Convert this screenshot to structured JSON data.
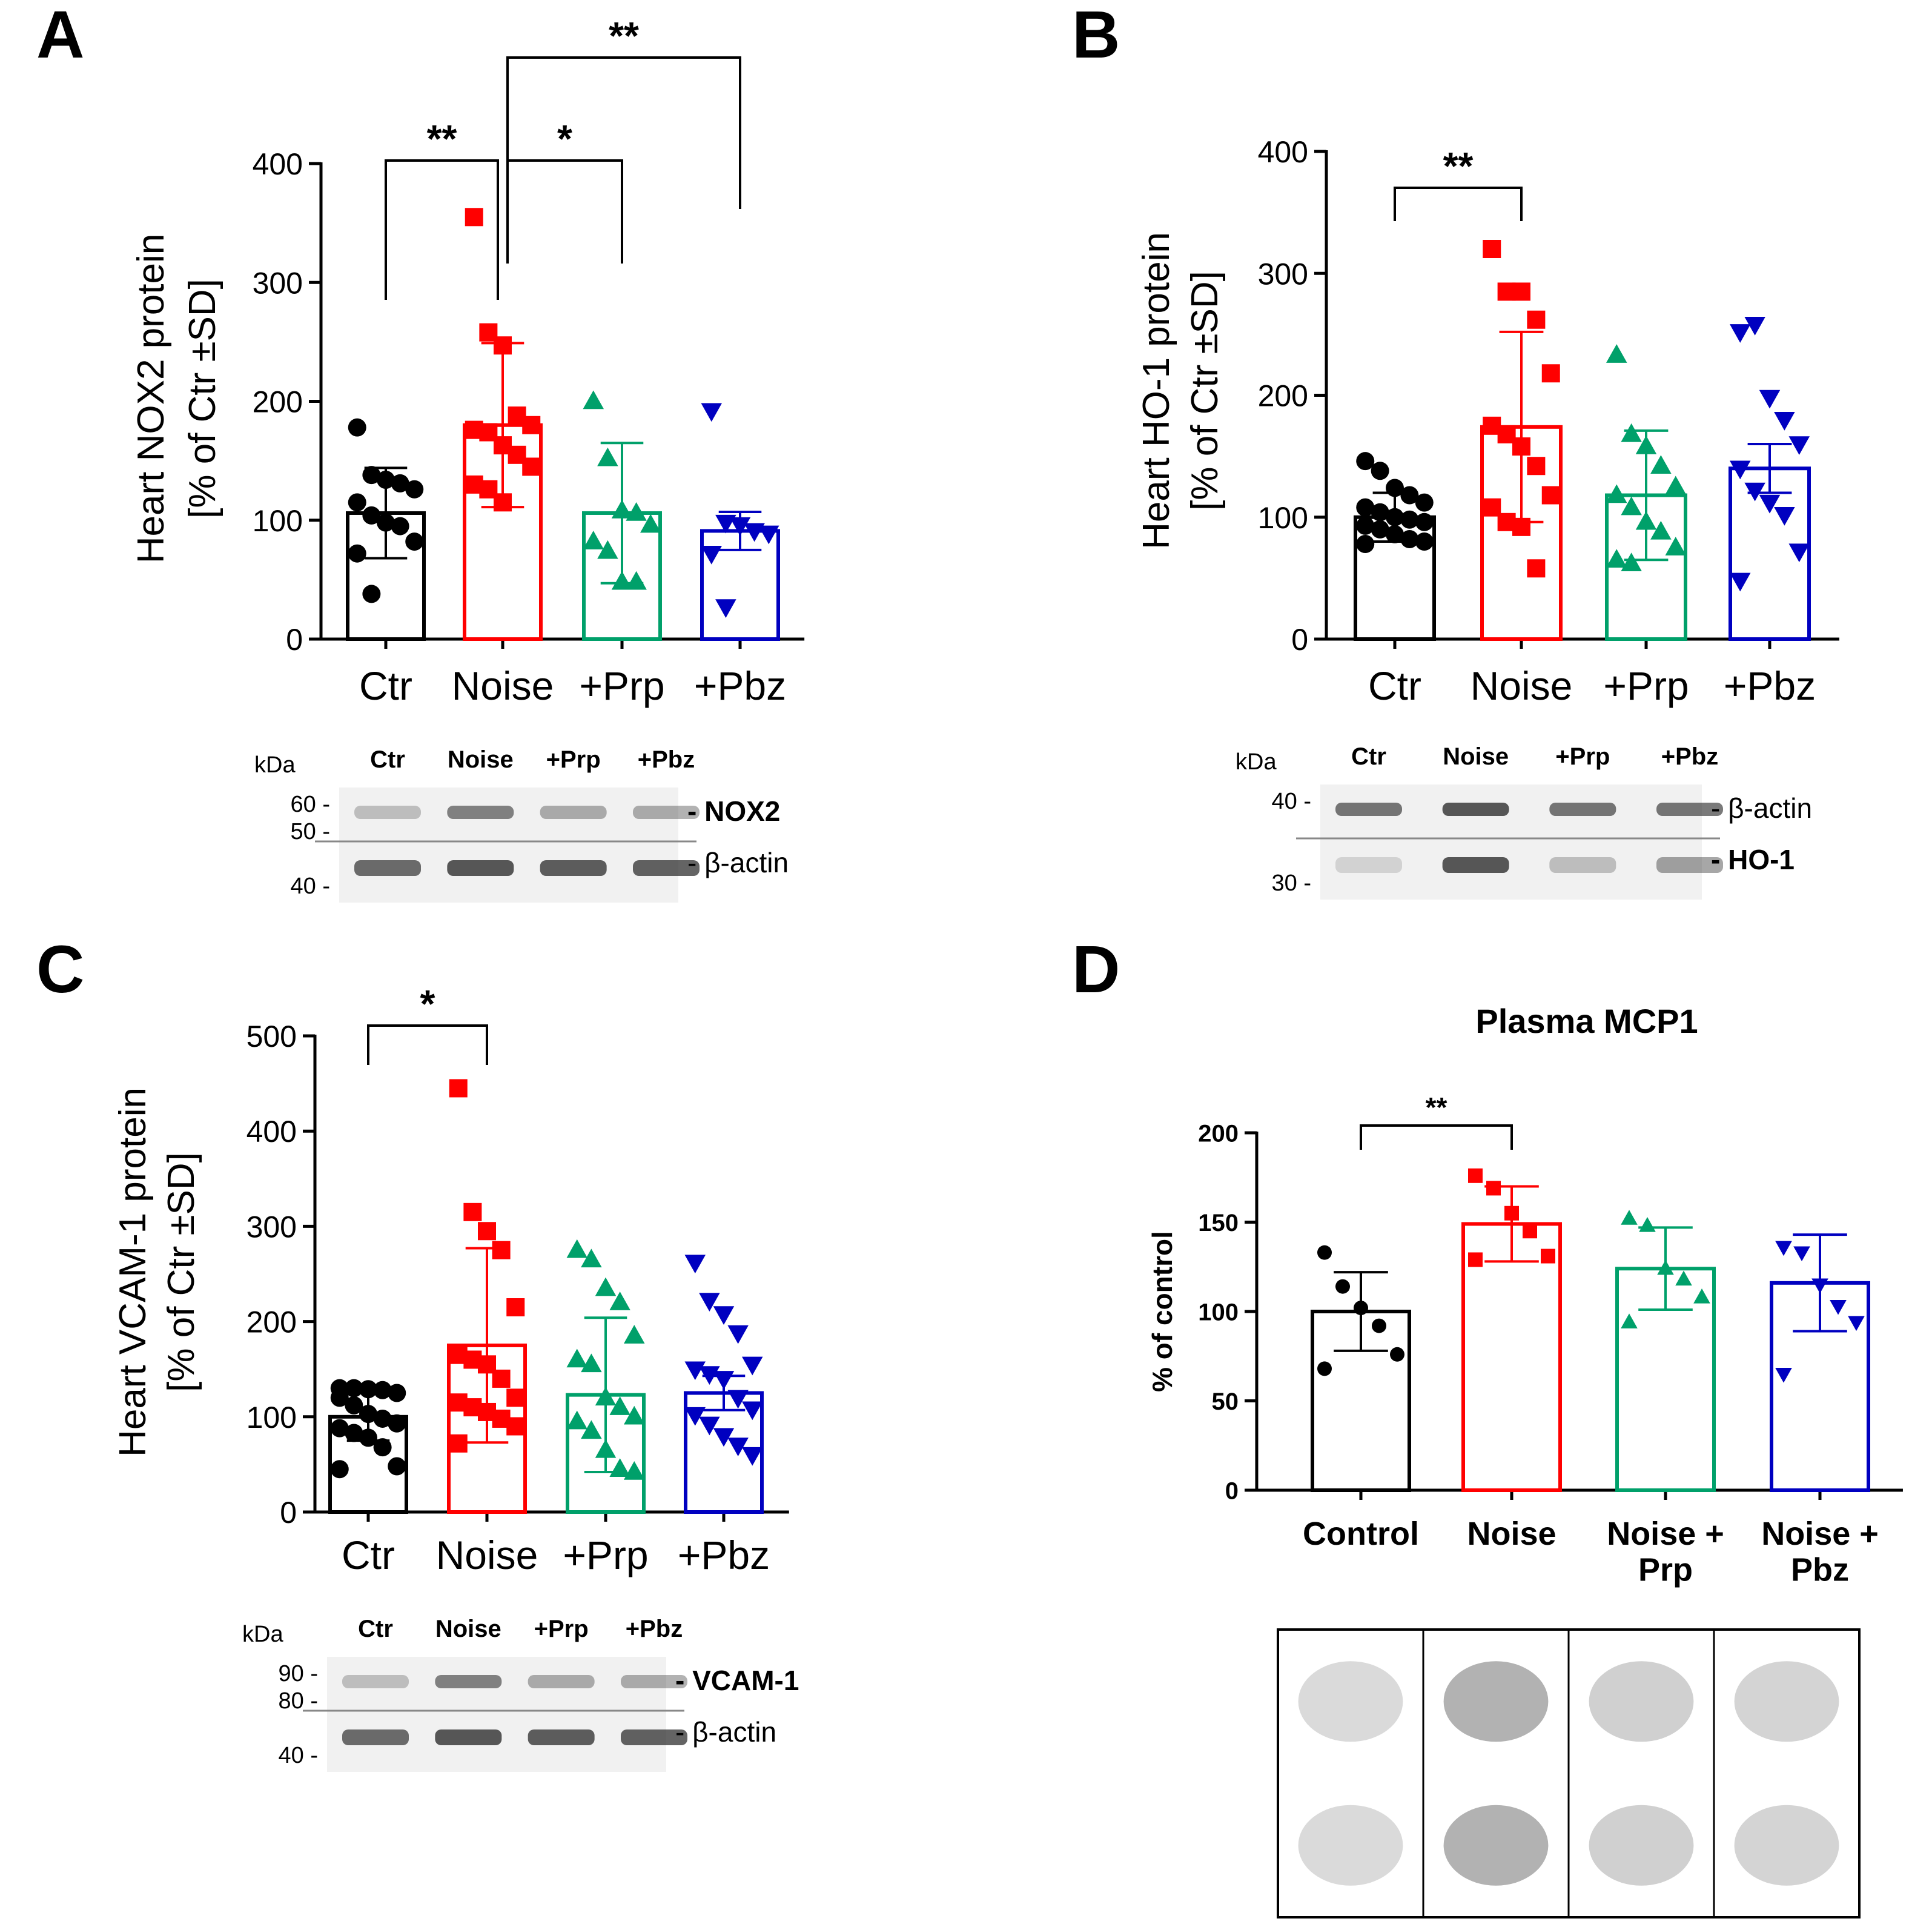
{
  "chart_data": [
    {
      "panel_label": "A",
      "type": "bar",
      "error_bars": "SD",
      "categories": [
        "Ctr",
        "Noise",
        "+Prp",
        "+Pbz"
      ],
      "values": [
        106,
        180,
        106,
        91
      ],
      "errors": [
        38,
        69,
        59,
        16
      ],
      "points": [
        [
          178,
          138,
          134,
          131,
          126,
          115,
          104,
          98,
          95,
          82,
          72,
          38
        ],
        [
          355,
          258,
          247,
          188,
          180,
          176,
          174,
          163,
          155,
          145,
          130,
          126,
          115
        ],
        [
          200,
          152,
          108,
          106,
          96,
          82,
          74,
          48,
          48
        ],
        [
          192,
          98,
          96,
          91,
          89,
          72,
          27
        ]
      ],
      "ylabel": [
        "Heart NOX2 protein",
        "[% of Ctr ±SD]"
      ],
      "ylim": [
        0,
        400
      ],
      "yticks": [
        "0",
        "100",
        "200",
        "300",
        "400"
      ],
      "significance": [
        {
          "from": "Ctr",
          "to": "Noise",
          "label": "**"
        },
        {
          "from": "Noise",
          "to": "+Prp",
          "label": "*"
        },
        {
          "from": "Noise",
          "to": "+Pbz",
          "label": "**"
        }
      ],
      "blot": {
        "kda_label": "kDa",
        "lanes": [
          "Ctr",
          "Noise",
          "+Prp",
          "+Pbz"
        ],
        "markers_top": [
          "60",
          "50"
        ],
        "markers_bottom": [
          "40"
        ],
        "label_top": "- NOX2",
        "label_bottom": "- β-actin"
      }
    },
    {
      "panel_label": "B",
      "type": "bar",
      "error_bars": "SD",
      "categories": [
        "Ctr",
        "Noise",
        "+Prp",
        "+Pbz"
      ],
      "values": [
        100,
        174,
        118,
        140
      ],
      "errors": [
        20,
        78,
        53,
        20
      ],
      "points": [
        [
          146,
          138,
          124,
          118,
          112,
          108,
          104,
          100,
          98,
          96,
          93,
          90,
          86,
          82,
          80,
          78
        ],
        [
          320,
          285,
          285,
          262,
          218,
          175,
          168,
          158,
          142,
          118,
          108,
          96,
          92,
          58
        ],
        [
          233,
          168,
          158,
          142,
          125,
          118,
          108,
          96,
          88,
          75,
          65,
          62
        ],
        [
          252,
          258,
          198,
          180,
          160,
          140,
          122,
          112,
          102,
          72,
          48
        ]
      ],
      "ylabel": [
        "Heart HO-1 protein",
        "[% of Ctr ±SD]"
      ],
      "ylim": [
        0,
        400
      ],
      "yticks": [
        "0",
        "100",
        "200",
        "300",
        "400"
      ],
      "significance": [
        {
          "from": "Ctr",
          "to": "Noise",
          "label": "**"
        }
      ],
      "blot": {
        "kda_label": "kDa",
        "lanes": [
          "Ctr",
          "Noise",
          "+Prp",
          "+Pbz"
        ],
        "markers_top": [
          "40"
        ],
        "markers_bottom": [
          "30"
        ],
        "label_top": "- β-actin",
        "label_bottom": "- HO-1"
      }
    },
    {
      "panel_label": "C",
      "type": "bar",
      "error_bars": "SD",
      "categories": [
        "Ctr",
        "Noise",
        "+Prp",
        "+Pbz"
      ],
      "values": [
        100,
        175,
        123,
        125
      ],
      "errors": [
        25,
        102,
        81,
        18
      ],
      "points": [
        [
          130,
          130,
          129,
          128,
          125,
          120,
          112,
          103,
          98,
          93,
          88,
          83,
          78,
          68,
          48,
          45
        ],
        [
          445,
          315,
          295,
          275,
          215,
          165,
          160,
          155,
          140,
          120,
          115,
          110,
          105,
          98,
          90,
          72
        ],
        [
          275,
          265,
          235,
          220,
          185,
          160,
          155,
          120,
          110,
          100,
          95,
          85,
          65,
          45,
          42
        ],
        [
          262,
          222,
          208,
          188,
          155,
          150,
          145,
          140,
          120,
          108,
          102,
          92,
          80,
          70,
          60
        ]
      ],
      "ylabel": [
        "Heart VCAM-1 protein",
        "[% of Ctr ±SD]"
      ],
      "ylim": [
        0,
        500
      ],
      "yticks": [
        "0",
        "100",
        "200",
        "300",
        "400",
        "500"
      ],
      "significance": [
        {
          "from": "Ctr",
          "to": "Noise",
          "label": "*"
        }
      ],
      "blot": {
        "kda_label": "kDa",
        "lanes": [
          "Ctr",
          "Noise",
          "+Prp",
          "+Pbz"
        ],
        "markers_top": [
          "90",
          "80"
        ],
        "markers_bottom": [
          "40"
        ],
        "label_top": "- VCAM-1",
        "label_bottom": "- β-actin"
      }
    },
    {
      "panel_label": "D",
      "type": "bar",
      "error_bars": "SD",
      "title": "Plasma MCP1",
      "categories": [
        "Control",
        "Noise",
        "Noise +\nPrp",
        "Noise +\nPbz"
      ],
      "values": [
        100,
        149,
        124,
        116
      ],
      "errors": [
        22,
        21,
        23,
        27
      ],
      "points": [
        [
          133,
          114,
          102,
          92,
          76,
          68
        ],
        [
          176,
          169,
          155,
          145,
          131,
          129
        ],
        [
          152,
          148,
          124,
          118,
          108,
          94
        ],
        [
          136,
          133,
          115,
          103,
          94,
          65
        ]
      ],
      "ylabel": [
        "% of control"
      ],
      "ylim": [
        0,
        200
      ],
      "yticks": [
        "0",
        "50",
        "100",
        "150",
        "200"
      ],
      "significance": [
        {
          "from": "Control",
          "to": "Noise",
          "label": "**"
        }
      ]
    }
  ],
  "colors": {
    "Ctr": "#000000",
    "Noise": "#ff0000",
    "Prp": "#00a06a",
    "Pbz": "#0000c0"
  },
  "markers": [
    "circle",
    "square",
    "triangle-up",
    "triangle-down"
  ]
}
